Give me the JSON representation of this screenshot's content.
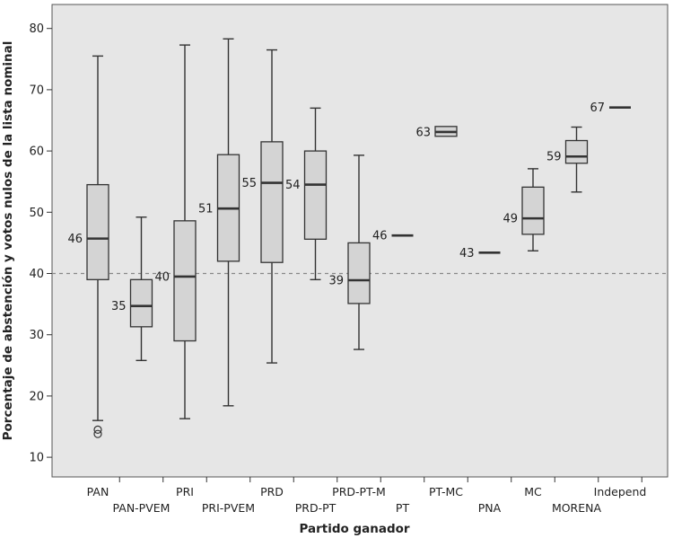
{
  "chart_data": {
    "type": "boxplot",
    "xlabel": "Partido ganador",
    "ylabel": "Porcentaje de abstención y votos nulos de la lista nominal",
    "ylim": [
      5,
      85
    ],
    "yticks": [
      10,
      20,
      30,
      40,
      50,
      60,
      70,
      80
    ],
    "reference_line": 40,
    "categories": [
      "PAN",
      "PAN-PVEM",
      "PRI",
      "PRI-PVEM",
      "PRD",
      "PRD-PT",
      "PRD-PT-M",
      "PT",
      "PT-MC",
      "PNA",
      "MC",
      "MORENA",
      "Independ"
    ],
    "series": [
      {
        "category": "PAN",
        "min": 16,
        "q1": 39,
        "median": 45.7,
        "q3": 54.5,
        "max": 75.5,
        "outliers": [
          14.5,
          13.8
        ],
        "label": "46"
      },
      {
        "category": "PAN-PVEM",
        "min": 25.8,
        "q1": 31.3,
        "median": 34.7,
        "q3": 39,
        "max": 49.2,
        "outliers": [],
        "label": "35"
      },
      {
        "category": "PRI",
        "min": 16.3,
        "q1": 29,
        "median": 39.5,
        "q3": 48.6,
        "max": 77.3,
        "outliers": [],
        "label": "40"
      },
      {
        "category": "PRI-PVEM",
        "min": 18.4,
        "q1": 42,
        "median": 50.6,
        "q3": 59.4,
        "max": 78.3,
        "outliers": [],
        "label": "51"
      },
      {
        "category": "PRD",
        "min": 25.4,
        "q1": 41.8,
        "median": 54.8,
        "q3": 61.5,
        "max": 76.5,
        "outliers": [],
        "label": "55"
      },
      {
        "category": "PRD-PT",
        "min": 39,
        "q1": 45.6,
        "median": 54.5,
        "q3": 60,
        "max": 67,
        "outliers": [],
        "label": "54"
      },
      {
        "category": "PRD-PT-M",
        "min": 27.6,
        "q1": 35.1,
        "median": 38.9,
        "q3": 45,
        "max": 59.3,
        "outliers": [],
        "label": "39"
      },
      {
        "category": "PT",
        "min": 46.2,
        "q1": 46.2,
        "median": 46.2,
        "q3": 46.2,
        "max": 46.2,
        "outliers": [],
        "label": "46"
      },
      {
        "category": "PT-MC",
        "min": 62.4,
        "q1": 62.4,
        "median": 63.1,
        "q3": 64,
        "max": 64,
        "outliers": [],
        "label": "63"
      },
      {
        "category": "PNA",
        "min": 43.4,
        "q1": 43.4,
        "median": 43.4,
        "q3": 43.4,
        "max": 43.4,
        "outliers": [],
        "label": "43"
      },
      {
        "category": "MC",
        "min": 43.7,
        "q1": 46.4,
        "median": 49,
        "q3": 54.1,
        "max": 57.1,
        "outliers": [],
        "label": "49"
      },
      {
        "category": "MORENA",
        "min": 53.3,
        "q1": 58,
        "median": 59.1,
        "q3": 61.7,
        "max": 63.9,
        "outliers": [],
        "label": "59"
      },
      {
        "category": "Independ",
        "min": 67.1,
        "q1": 67.1,
        "median": 67.1,
        "q3": 67.1,
        "max": 67.1,
        "outliers": [],
        "label": "67"
      }
    ],
    "colors": {
      "plot_background": "#e6e6e6",
      "box_fill": "#d4d4d4",
      "stroke": "#333333",
      "reference_line": "#888888"
    }
  }
}
